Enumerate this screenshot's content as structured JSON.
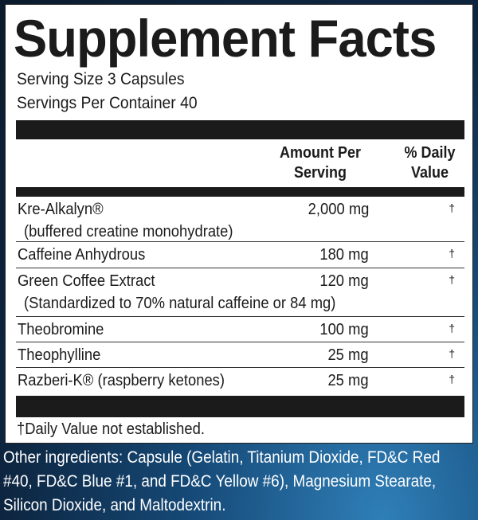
{
  "title": "Supplement Facts",
  "serving_size": "Serving Size 3 Capsules",
  "servings_per_container": "Servings Per Container 40",
  "columns": {
    "amount_line1": "Amount Per",
    "amount_line2": "Serving",
    "dv_line1": "% Daily",
    "dv_line2": "Value"
  },
  "rows": [
    {
      "name": "Kre-Alkalyn®",
      "sub": "(buffered creatine monohydrate)",
      "amount": "2,000 mg",
      "dv": "†"
    },
    {
      "name": "Caffeine Anhydrous",
      "amount": "180 mg",
      "dv": "†"
    },
    {
      "name": "Green Coffee Extract",
      "sub": "(Standardized to 70% natural caffeine or 84 mg)",
      "amount": "120 mg",
      "dv": "†"
    },
    {
      "name": "Theobromine",
      "amount": "100 mg",
      "dv": "†"
    },
    {
      "name": "Theophylline",
      "amount": "25 mg",
      "dv": "†"
    },
    {
      "name": "Razberi-K® (raspberry ketones)",
      "amount": "25 mg",
      "dv": "†"
    }
  ],
  "footnote": "†Daily Value not established.",
  "other_ingredients": "Other ingredients: Capsule (Gelatin, Titanium Dioxide, FD&C Red #40, FD&C Blue #1, and FD&C Yellow #6), Magnesium Stearate, Silicon Dioxide, and Maltodextrin."
}
